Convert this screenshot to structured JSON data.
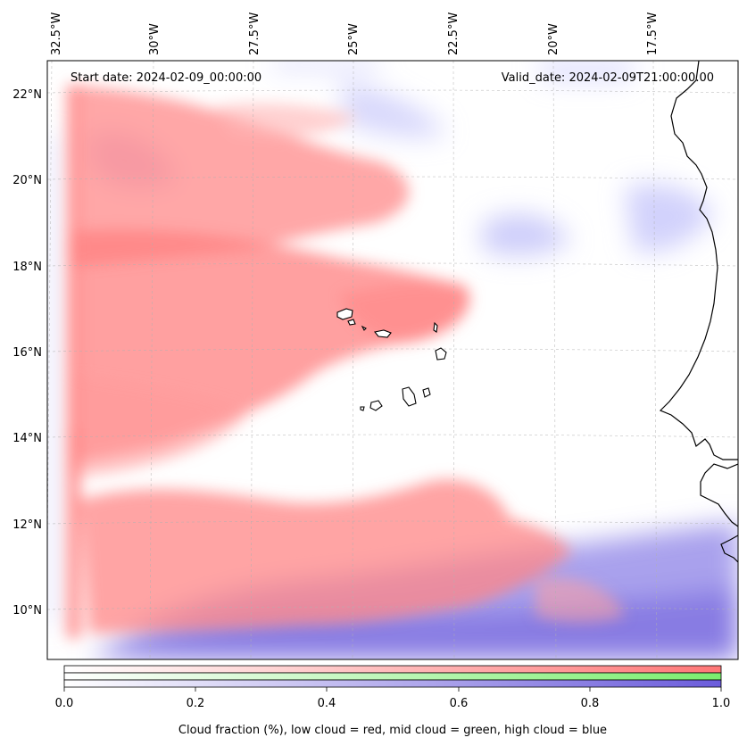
{
  "chart": {
    "start_label": "Start date: 2024-02-09_00:00:00",
    "valid_label": "Valid_date: 2024-02-09T21:00:00.00"
  },
  "axes": {
    "lon_labels": [
      "32.5°W",
      "30°W",
      "27.5°W",
      "25°W",
      "22.5°W",
      "20°W",
      "17.5°W"
    ],
    "lat_labels": [
      "22°N",
      "20°N",
      "18°N",
      "16°N",
      "14°N",
      "12°N",
      "10°N"
    ]
  },
  "colorbar": {
    "ticks": [
      "0.0",
      "0.2",
      "0.4",
      "0.6",
      "0.8",
      "1.0"
    ],
    "label": "Cloud fraction (%), low cloud = red, mid cloud = green, high cloud = blue",
    "low_color": "#ff7777",
    "mid_color": "#7aee6e",
    "high_color": "#6b5cdb"
  },
  "chart_data": {
    "type": "heatmap",
    "title": "",
    "start_date": "2024-02-09_00:00:00",
    "valid_date": "2024-02-09T21:00:00.00",
    "lon_ticks": [
      -32.5,
      -30,
      -27.5,
      -25,
      -22.5,
      -20,
      -17.5
    ],
    "lat_ticks": [
      22,
      20,
      18,
      16,
      14,
      12,
      10
    ],
    "lon_range": [
      -33,
      -16
    ],
    "lat_range": [
      9,
      23
    ],
    "colorbar_range": [
      0.0,
      1.0
    ],
    "layers": [
      "low cloud (red)",
      "mid cloud (green)",
      "high cloud (blue)"
    ]
  }
}
